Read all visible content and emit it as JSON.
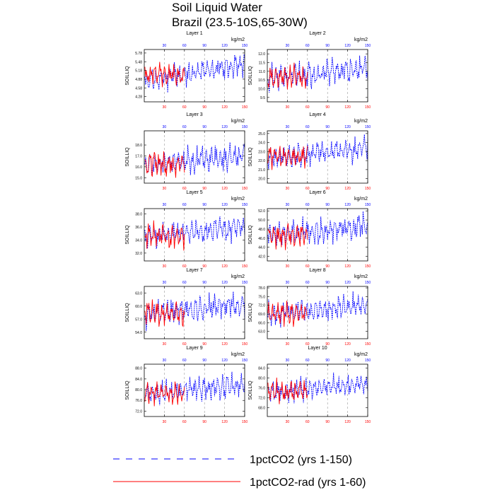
{
  "title_line1": "Soil Liquid Water",
  "title_line2": "Brazil (23.5-10S,65-30W)",
  "legend": [
    {
      "label": "1pctCO2 (yrs 1-150)",
      "color": "#0000ff",
      "style": "dashed"
    },
    {
      "label": "1pctCO2-rad (yrs 1-60)",
      "color": "#ff0000",
      "style": "solid"
    }
  ],
  "chart_data": [
    {
      "type": "line",
      "panel_title": "Layer 1",
      "ylabel": "SOILLIQ",
      "top_unit": "kg/m2",
      "x_range": [
        0,
        150
      ],
      "xticks": [
        30,
        60,
        90,
        120,
        150
      ],
      "ylim": [
        4.1,
        5.9
      ],
      "yticks": [
        4.28,
        4.58,
        4.88,
        5.18,
        5.48,
        5.78
      ],
      "ytick_labels": [
        "4.28",
        "4.58",
        "4.88",
        "5.18",
        "5.48",
        "5.78"
      ],
      "grid": "dashed vertical at x ticks",
      "series": [
        {
          "name": "1pctCO2 (yrs 1-150)",
          "color": "#0000ff",
          "years": [
            1,
            150
          ],
          "mean": 5.1,
          "amplitude": 0.42,
          "trend": 0.004,
          "seed": 11
        },
        {
          "name": "1pctCO2-rad (yrs 1-60)",
          "color": "#ff0000",
          "years": [
            1,
            60
          ],
          "mean": 5.02,
          "amplitude": 0.4,
          "trend": 0.0,
          "seed": 12
        }
      ]
    },
    {
      "type": "line",
      "panel_title": "Layer 2",
      "ylabel": "SOILLIQ",
      "top_unit": "kg/m2",
      "x_range": [
        0,
        150
      ],
      "xticks": [
        30,
        60,
        90,
        120,
        150
      ],
      "ylim": [
        9.25,
        12.25
      ],
      "yticks": [
        9.5,
        10.0,
        10.5,
        11.0,
        11.5,
        12.0
      ],
      "ytick_labels": [
        "9.5",
        "10.0",
        "10.5",
        "11.0",
        "11.5",
        "12.0"
      ],
      "grid": "dashed vertical at x ticks",
      "series": [
        {
          "name": "1pctCO2 (yrs 1-150)",
          "color": "#0000ff",
          "years": [
            1,
            150
          ],
          "mean": 10.9,
          "amplitude": 0.75,
          "trend": 0.004,
          "seed": 21
        },
        {
          "name": "1pctCO2-rad (yrs 1-60)",
          "color": "#ff0000",
          "years": [
            1,
            60
          ],
          "mean": 10.7,
          "amplitude": 0.7,
          "trend": 0.0,
          "seed": 22
        }
      ]
    },
    {
      "type": "line",
      "panel_title": "Layer 3",
      "ylabel": "SOILLIQ",
      "top_unit": "kg/m2",
      "x_range": [
        0,
        150
      ],
      "xticks": [
        30,
        60,
        90,
        120,
        150
      ],
      "ylim": [
        14.5,
        19.3
      ],
      "yticks": [
        15.0,
        16.0,
        17.0,
        18.0
      ],
      "ytick_labels": [
        "15.0",
        "16.0",
        "17.0",
        "18.0"
      ],
      "grid": "dashed vertical at x ticks",
      "series": [
        {
          "name": "1pctCO2 (yrs 1-150)",
          "color": "#0000ff",
          "years": [
            1,
            150
          ],
          "mean": 16.6,
          "amplitude": 1.2,
          "trend": 0.006,
          "seed": 31
        },
        {
          "name": "1pctCO2-rad (yrs 1-60)",
          "color": "#ff0000",
          "years": [
            1,
            60
          ],
          "mean": 16.3,
          "amplitude": 1.1,
          "trend": 0.0,
          "seed": 32
        }
      ]
    },
    {
      "type": "line",
      "panel_title": "Layer 4",
      "ylabel": "SOILLIQ",
      "top_unit": "kg/m2",
      "x_range": [
        0,
        150
      ],
      "xticks": [
        30,
        60,
        90,
        120,
        150
      ],
      "ylim": [
        19.5,
        25.3
      ],
      "yticks": [
        20.0,
        21.0,
        22.0,
        23.0,
        24.0,
        25.0
      ],
      "ytick_labels": [
        "20.0",
        "21.0",
        "22.0",
        "23.0",
        "24.0",
        "25.0"
      ],
      "grid": "dashed vertical at x ticks",
      "series": [
        {
          "name": "1pctCO2 (yrs 1-150)",
          "color": "#0000ff",
          "years": [
            1,
            150
          ],
          "mean": 22.8,
          "amplitude": 1.4,
          "trend": 0.008,
          "seed": 41
        },
        {
          "name": "1pctCO2-rad (yrs 1-60)",
          "color": "#ff0000",
          "years": [
            1,
            60
          ],
          "mean": 22.4,
          "amplitude": 1.3,
          "trend": 0.0,
          "seed": 42
        }
      ]
    },
    {
      "type": "line",
      "panel_title": "Layer 5",
      "ylabel": "SOILLIQ",
      "top_unit": "kg/m2",
      "x_range": [
        0,
        150
      ],
      "xticks": [
        30,
        60,
        90,
        120,
        150
      ],
      "ylim": [
        30.8,
        38.8
      ],
      "yticks": [
        32.0,
        34.0,
        36.0,
        38.0
      ],
      "ytick_labels": [
        "32.0",
        "34.0",
        "36.0",
        "38.0"
      ],
      "grid": "dashed vertical at x ticks",
      "series": [
        {
          "name": "1pctCO2 (yrs 1-150)",
          "color": "#0000ff",
          "years": [
            1,
            150
          ],
          "mean": 35.2,
          "amplitude": 1.9,
          "trend": 0.01,
          "seed": 51
        },
        {
          "name": "1pctCO2-rad (yrs 1-60)",
          "color": "#ff0000",
          "years": [
            1,
            60
          ],
          "mean": 34.6,
          "amplitude": 1.8,
          "trend": 0.0,
          "seed": 52
        }
      ]
    },
    {
      "type": "line",
      "panel_title": "Layer 6",
      "ylabel": "SOILLIQ",
      "top_unit": "kg/m2",
      "x_range": [
        0,
        150
      ],
      "xticks": [
        30,
        60,
        90,
        120,
        150
      ],
      "ylim": [
        41.0,
        52.5
      ],
      "yticks": [
        42.0,
        44.0,
        46.0,
        48.0,
        50.0,
        52.0
      ],
      "ytick_labels": [
        "42.0",
        "44.0",
        "46.0",
        "48.0",
        "50.0",
        "52.0"
      ],
      "grid": "dashed vertical at x ticks",
      "series": [
        {
          "name": "1pctCO2 (yrs 1-150)",
          "color": "#0000ff",
          "years": [
            1,
            150
          ],
          "mean": 47.5,
          "amplitude": 2.8,
          "trend": 0.014,
          "seed": 61
        },
        {
          "name": "1pctCO2-rad (yrs 1-60)",
          "color": "#ff0000",
          "years": [
            1,
            60
          ],
          "mean": 46.6,
          "amplitude": 2.6,
          "trend": 0.0,
          "seed": 62
        }
      ]
    },
    {
      "type": "line",
      "panel_title": "Layer 7",
      "ylabel": "SOILLIQ",
      "top_unit": "kg/m2",
      "x_range": [
        0,
        150
      ],
      "xticks": [
        30,
        60,
        90,
        120,
        150
      ],
      "ylim": [
        52.5,
        64.5
      ],
      "yticks": [
        54.0,
        57.0,
        60.0,
        63.0
      ],
      "ytick_labels": [
        "54.0",
        "57.0",
        "60.0",
        "63.0"
      ],
      "grid": "dashed vertical at x ticks",
      "series": [
        {
          "name": "1pctCO2 (yrs 1-150)",
          "color": "#0000ff",
          "years": [
            1,
            150
          ],
          "mean": 59.3,
          "amplitude": 3.0,
          "trend": 0.014,
          "seed": 71
        },
        {
          "name": "1pctCO2-rad (yrs 1-60)",
          "color": "#ff0000",
          "years": [
            1,
            60
          ],
          "mean": 58.3,
          "amplitude": 2.8,
          "trend": 0.0,
          "seed": 72
        }
      ]
    },
    {
      "type": "line",
      "panel_title": "Layer 8",
      "ylabel": "SOILLIQ",
      "top_unit": "kg/m2",
      "x_range": [
        0,
        150
      ],
      "xticks": [
        30,
        60,
        90,
        120,
        150
      ],
      "ylim": [
        60.5,
        78.5
      ],
      "yticks": [
        63.0,
        66.0,
        69.0,
        72.0,
        75.0,
        78.0
      ],
      "ytick_labels": [
        "63.0",
        "66.0",
        "69.0",
        "72.0",
        "75.0",
        "78.0"
      ],
      "grid": "dashed vertical at x ticks",
      "series": [
        {
          "name": "1pctCO2 (yrs 1-150)",
          "color": "#0000ff",
          "years": [
            1,
            150
          ],
          "mean": 70.5,
          "amplitude": 4.0,
          "trend": 0.02,
          "seed": 81
        },
        {
          "name": "1pctCO2-rad (yrs 1-60)",
          "color": "#ff0000",
          "years": [
            1,
            60
          ],
          "mean": 69.0,
          "amplitude": 3.8,
          "trend": 0.0,
          "seed": 82
        }
      ]
    },
    {
      "type": "line",
      "panel_title": "Layer 9",
      "ylabel": "SOILLIQ",
      "top_unit": "kg/m2",
      "x_range": [
        0,
        150
      ],
      "xticks": [
        30,
        60,
        90,
        120,
        150
      ],
      "ylim": [
        70.0,
        89.5
      ],
      "yticks": [
        72.0,
        76.0,
        80.0,
        84.0,
        88.0
      ],
      "ytick_labels": [
        "72.0",
        "76.0",
        "80.0",
        "84.0",
        "88.0"
      ],
      "grid": "dashed vertical at x ticks",
      "series": [
        {
          "name": "1pctCO2 (yrs 1-150)",
          "color": "#0000ff",
          "years": [
            1,
            150
          ],
          "mean": 80.0,
          "amplitude": 4.3,
          "trend": 0.022,
          "seed": 91
        },
        {
          "name": "1pctCO2-rad (yrs 1-60)",
          "color": "#ff0000",
          "years": [
            1,
            60
          ],
          "mean": 78.6,
          "amplitude": 4.0,
          "trend": 0.0,
          "seed": 92
        }
      ]
    },
    {
      "type": "line",
      "panel_title": "Layer 10",
      "ylabel": "SOILLIQ",
      "top_unit": "kg/m2",
      "x_range": [
        0,
        150
      ],
      "xticks": [
        30,
        60,
        90,
        120,
        150
      ],
      "ylim": [
        64.5,
        85.5
      ],
      "yticks": [
        68.0,
        72.0,
        76.0,
        80.0,
        84.0
      ],
      "ytick_labels": [
        "68.0",
        "72.0",
        "76.0",
        "80.0",
        "84.0"
      ],
      "grid": "dashed vertical at x ticks",
      "series": [
        {
          "name": "1pctCO2 (yrs 1-150)",
          "color": "#0000ff",
          "years": [
            1,
            150
          ],
          "mean": 76.0,
          "amplitude": 4.5,
          "trend": 0.024,
          "seed": 101
        },
        {
          "name": "1pctCO2-rad (yrs 1-60)",
          "color": "#ff0000",
          "years": [
            1,
            60
          ],
          "mean": 74.5,
          "amplitude": 4.2,
          "trend": 0.0,
          "seed": 102
        }
      ]
    }
  ]
}
